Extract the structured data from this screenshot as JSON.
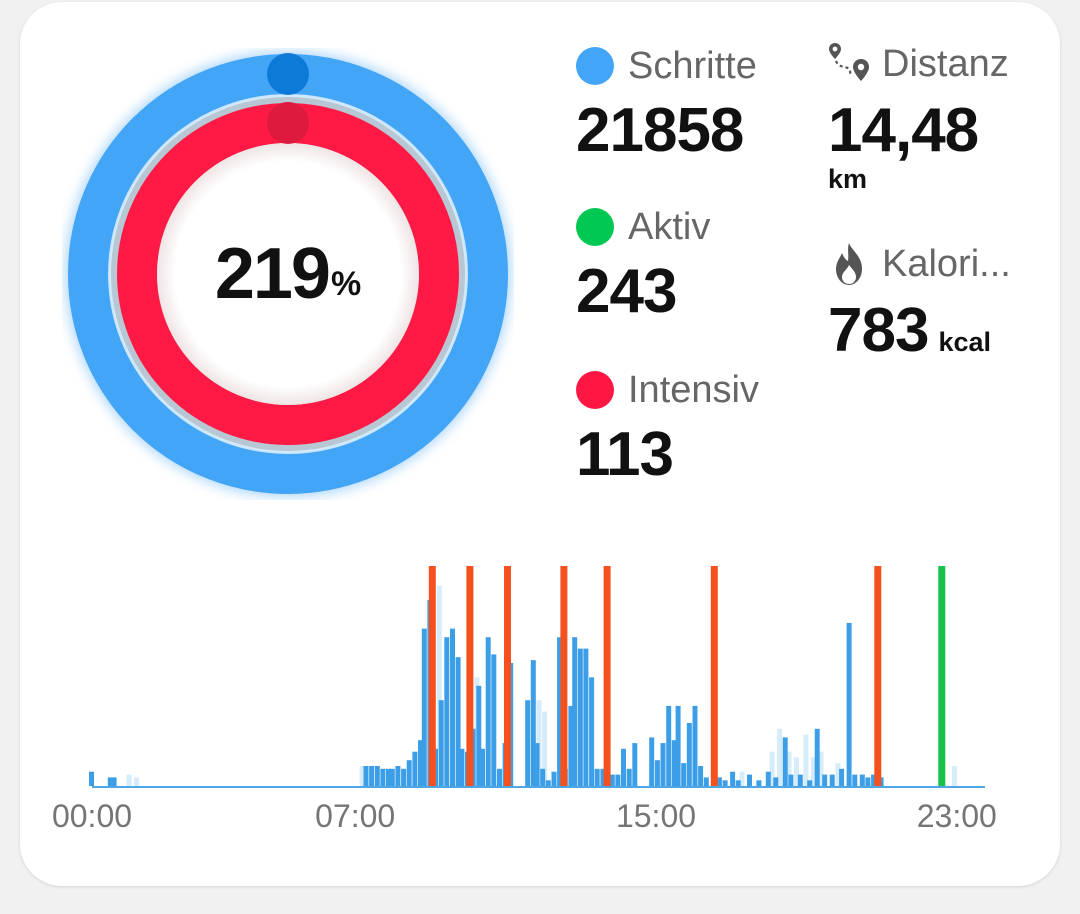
{
  "summary": {
    "goal_percent": "219",
    "percent_sign": "%",
    "goal_progress": 2.19
  },
  "stats": {
    "steps": {
      "label": "Schritte",
      "value": "21858",
      "color": "#42a5f5"
    },
    "active": {
      "label": "Aktiv",
      "value": "243",
      "color": "#00c853"
    },
    "intense": {
      "label": "Intensiv",
      "value": "113",
      "color": "#ff1744"
    },
    "distance": {
      "label": "Distanz",
      "value": "14,48",
      "unit": "km",
      "icon": "route-pin-icon"
    },
    "calories": {
      "label": "Kalori...",
      "value": "783",
      "unit": "kcal",
      "icon": "flame-icon"
    }
  },
  "colors": {
    "steps_ring": "#42a5f5",
    "steps_knob": "#0d7ad8",
    "intense_ring": "#ff1a45",
    "intense_knob": "#de1a3f",
    "bar_strong": "#3d9ee8",
    "bar_faint": "#d6ecfb",
    "marker_orange": "#f4511e",
    "marker_green": "#19c24a"
  },
  "chart_data": {
    "type": "bar",
    "x_unit": "hour of day",
    "xlim": [
      0,
      24
    ],
    "x_ticks": [
      "00:00",
      "07:00",
      "15:00",
      "23:00"
    ],
    "x_tick_positions": [
      0,
      7,
      15,
      23
    ],
    "y_unit": "relative steps",
    "ylim": [
      0,
      100
    ],
    "series": [
      {
        "name": "strong",
        "x": [
          0.0,
          0.5,
          0.6,
          7.3,
          7.45,
          7.6,
          7.75,
          7.9,
          8.0,
          8.15,
          8.3,
          8.45,
          8.6,
          8.75,
          8.85,
          9.0,
          9.15,
          9.3,
          9.45,
          9.6,
          9.75,
          9.85,
          10.0,
          10.15,
          10.3,
          10.4,
          10.55,
          10.7,
          10.85,
          11.0,
          11.15,
          11.6,
          11.75,
          11.85,
          12.0,
          12.15,
          12.3,
          12.45,
          12.6,
          12.75,
          12.85,
          13.0,
          13.15,
          13.3,
          13.45,
          13.6,
          13.75,
          13.85,
          14.0,
          14.15,
          14.3,
          14.45,
          14.9,
          15.05,
          15.2,
          15.35,
          15.5,
          15.6,
          15.75,
          15.9,
          16.05,
          16.2,
          16.35,
          16.7,
          16.85,
          17.05,
          17.2,
          17.5,
          17.75,
          18.0,
          18.2,
          18.45,
          18.6,
          18.85,
          19.1,
          19.3,
          19.5,
          19.7,
          19.95,
          20.15,
          20.3,
          20.5,
          20.65,
          20.8,
          21.0
        ],
        "values": [
          5,
          3,
          3,
          7,
          7,
          7,
          6,
          6,
          6,
          7,
          6,
          9,
          12,
          16,
          55,
          65,
          13,
          30,
          52,
          55,
          45,
          13,
          12,
          20,
          35,
          13,
          52,
          46,
          6,
          15,
          43,
          30,
          44,
          15,
          6,
          2,
          5,
          52,
          6,
          28,
          52,
          48,
          48,
          38,
          6,
          6,
          4,
          4,
          4,
          13,
          6,
          15,
          17,
          9,
          15,
          28,
          16,
          28,
          8,
          22,
          28,
          7,
          3,
          3,
          2,
          5,
          2,
          4,
          2,
          5,
          3,
          17,
          4,
          4,
          2,
          20,
          4,
          4,
          6,
          57,
          4,
          4,
          3,
          4,
          3
        ],
        "color": "#3d9ee8"
      },
      {
        "name": "faint",
        "x": [
          1.0,
          1.2,
          7.2,
          9.25,
          10.25,
          11.9,
          12.05,
          17.3,
          18.1,
          18.3,
          18.55,
          18.75,
          19.0,
          19.2,
          19.4,
          19.85,
          22.95
        ],
        "values": [
          4,
          3,
          7,
          70,
          38,
          30,
          26,
          5,
          12,
          20,
          12,
          10,
          18,
          10,
          12,
          8,
          7
        ],
        "color": "#d6ecfb"
      }
    ],
    "markers": [
      {
        "x": 9.05,
        "color": "#f4511e"
      },
      {
        "x": 10.05,
        "color": "#f4511e"
      },
      {
        "x": 11.05,
        "color": "#f4511e"
      },
      {
        "x": 12.55,
        "color": "#f4511e"
      },
      {
        "x": 13.7,
        "color": "#f4511e"
      },
      {
        "x": 16.55,
        "color": "#f4511e"
      },
      {
        "x": 20.9,
        "color": "#f4511e"
      },
      {
        "x": 22.6,
        "color": "#19c24a"
      }
    ]
  }
}
